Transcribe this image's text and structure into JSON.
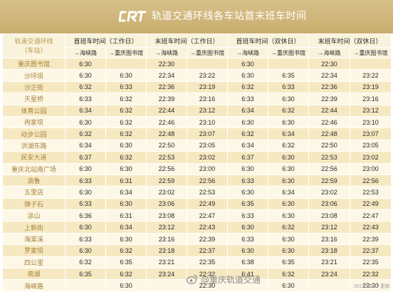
{
  "header": {
    "title": "轨道交通环线各车站首末班车时间"
  },
  "table": {
    "station_header_line1": "轨道交通环线",
    "station_header_line2": "（车站）",
    "groups": [
      "首班车时间（工作日）",
      "末班车时间（工作日）",
      "首班车时间（双休日）",
      "末班车时间（双休日）"
    ],
    "sub_headers": [
      "→海峡路",
      "→重庆图书馆",
      "→海峡路",
      "→重庆图书馆",
      "→海峡路",
      "→重庆图书馆",
      "→海峡路",
      "→重庆图书馆"
    ],
    "rows": [
      [
        "重庆图书馆",
        "6:30",
        "",
        "22:30",
        "",
        "6:30",
        "",
        "22:30",
        ""
      ],
      [
        "沙坪坝",
        "6:30",
        "6:30",
        "22:34",
        "23:22",
        "6:30",
        "6:35",
        "22:34",
        "23:22"
      ],
      [
        "沙正街",
        "6:32",
        "6:33",
        "22:36",
        "23:19",
        "6:32",
        "6:33",
        "22:36",
        "23:19"
      ],
      [
        "天星桥",
        "6:33",
        "6:32",
        "22:39",
        "23:16",
        "6:33",
        "6:30",
        "22:39",
        "23:16"
      ],
      [
        "体育公园",
        "6:34",
        "6:32",
        "22:44",
        "23:12",
        "6:34",
        "6:32",
        "22:44",
        "23:12"
      ],
      [
        "冉家坝",
        "6:30",
        "6:32",
        "22:46",
        "23:10",
        "6:30",
        "6:30",
        "22:46",
        "23:10"
      ],
      [
        "动步公园",
        "6:32",
        "6:32",
        "22:48",
        "23:07",
        "6:32",
        "6:34",
        "22:48",
        "23:07"
      ],
      [
        "洪湖东路",
        "6:34",
        "6:30",
        "22:50",
        "23:05",
        "6:34",
        "6:32",
        "22:50",
        "23:05"
      ],
      [
        "民安大道",
        "6:37",
        "6:32",
        "22:53",
        "23:02",
        "6:37",
        "6:30",
        "22:53",
        "23:02"
      ],
      [
        "重庆北站南广场",
        "6:30",
        "6:30",
        "22:56",
        "23:00",
        "6:30",
        "6:30",
        "22:56",
        "23:00"
      ],
      [
        "渝鲁",
        "6:33",
        "6:31",
        "22:59",
        "22:56",
        "6:33",
        "6:30",
        "22:59",
        "22:56"
      ],
      [
        "五里店",
        "6:30",
        "6:34",
        "23:02",
        "22:53",
        "6:30",
        "6:34",
        "23:02",
        "22:53"
      ],
      [
        "弹子石",
        "6:33",
        "6:30",
        "23:06",
        "22:49",
        "6:35",
        "6:30",
        "23:06",
        "22:49"
      ],
      [
        "涂山",
        "6:36",
        "6:31",
        "23:08",
        "22:47",
        "6:33",
        "6:30",
        "23:08",
        "22:47"
      ],
      [
        "上新街",
        "6:30",
        "6:34",
        "23:12",
        "22:43",
        "6:30",
        "6:32",
        "23:12",
        "22:43"
      ],
      [
        "海棠溪",
        "6:33",
        "6:30",
        "23:16",
        "22:39",
        "6:33",
        "6:30",
        "23:16",
        "22:39"
      ],
      [
        "罗家坝",
        "6:30",
        "6:32",
        "23:18",
        "22:37",
        "6:30",
        "6:30",
        "23:18",
        "22:37"
      ],
      [
        "四公里",
        "6:32",
        "6:35",
        "23:21",
        "22:35",
        "6:38",
        "6:35",
        "23:21",
        "22:35"
      ],
      [
        "南湖",
        "6:35",
        "6:32",
        "23:24",
        "22:32",
        "6:41",
        "6:32",
        "23:24",
        "22:32"
      ],
      [
        "海峡路",
        "",
        "6:30",
        "",
        "22:30",
        "",
        "6:30",
        "",
        "22:30"
      ]
    ]
  },
  "watermark": {
    "text": "@重庆轨道交通",
    "icon": "weibo-icon"
  },
  "footer": {
    "date": "2019.08.01 更新"
  },
  "colors": {
    "header_bg": "#cdb274",
    "row_odd": "#f6e9c2",
    "row_even": "#fdf7e6",
    "station_text": "#a5823a"
  }
}
